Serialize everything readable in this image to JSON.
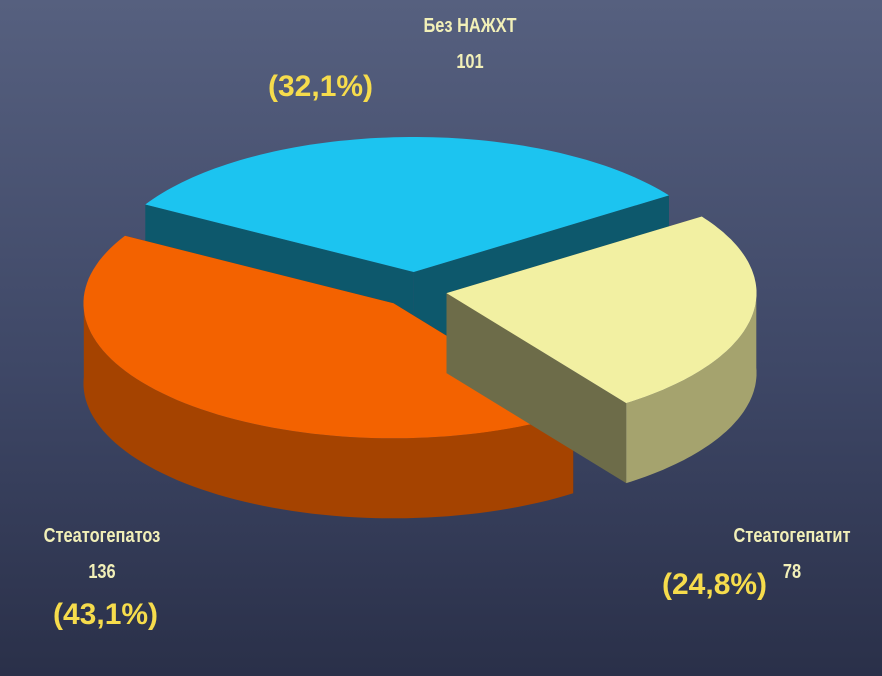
{
  "chart_data": {
    "type": "pie",
    "categories": [
      "Без НАЖХТ",
      "Стеатогепатит",
      "Стеатогепатоз"
    ],
    "values": [
      101,
      78,
      136
    ],
    "percent_values": [
      32.1,
      24.8,
      43.1
    ],
    "percent_labels": [
      "(32,1%)",
      "(24,8%)",
      "(43,1%)"
    ],
    "colors": [
      "#1cc4f0",
      "#f2f0a2",
      "#f36200"
    ]
  }
}
